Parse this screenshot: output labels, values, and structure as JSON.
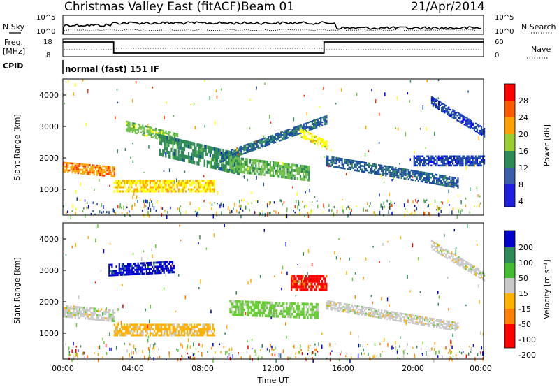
{
  "header": {
    "title": "Christmas Valley East (fitACF)",
    "beam": "Beam 01",
    "date": "21/Apr/2014"
  },
  "noise_panel": {
    "left_label": "N.Sky",
    "left_ticks": [
      "10^5",
      "10^0"
    ],
    "right_label": "N.Search",
    "right_ticks": [
      "10^5",
      "10^0"
    ]
  },
  "freq_panel": {
    "left_label_line1": "Freq.",
    "left_label_line2": "[MHz]",
    "left_ticks": [
      "18",
      "8"
    ],
    "right_label": "Nave",
    "right_ticks": [
      "60",
      "0"
    ]
  },
  "cpid": {
    "label": "CPID",
    "value": "normal (fast) 151 IF"
  },
  "power_panel": {
    "ylabel": "Slant Range [km]",
    "yticks": [
      "4000",
      "3000",
      "2000",
      "1000"
    ],
    "colorbar_label": "Power [dB]",
    "colorbar_ticks": [
      "28",
      "24",
      "20",
      "16",
      "12",
      "8",
      "4"
    ]
  },
  "velocity_panel": {
    "ylabel": "Slant Range [km]",
    "yticks": [
      "4000",
      "3000",
      "2000",
      "1000"
    ],
    "colorbar_label": "Velocity [m s⁻¹]",
    "colorbar_ticks": [
      "200",
      "100",
      "50",
      "15",
      "-15",
      "-50",
      "-100",
      "-200"
    ]
  },
  "xaxis": {
    "ticks": [
      "00:00",
      "04:00",
      "08:00",
      "12:00",
      "16:00",
      "20:00",
      "00:00"
    ],
    "label": "Time UT"
  },
  "chart_data": {
    "type": "heatmap",
    "panels": [
      {
        "name": "Power",
        "x_range_hours": [
          0,
          24
        ],
        "y_range_km": [
          180,
          4500
        ],
        "colorscale": [
          "#0000ff",
          "#1a4ba0",
          "#2e8b57",
          "#6cc04a",
          "#ffff00",
          "#ffa500",
          "#ff3300"
        ],
        "color_range": [
          0,
          30
        ],
        "features": [
          {
            "t": [
              0.0,
              2.9
            ],
            "r_center": [
              1700,
              1550
            ],
            "width": 350,
            "value": 26
          },
          {
            "t": [
              2.9,
              8.6
            ],
            "r_center": [
              1100,
              1100
            ],
            "width": 400,
            "value": 22
          },
          {
            "t": [
              3.6,
              6.5
            ],
            "r_center": [
              3000,
              2600
            ],
            "width": 350,
            "value": 15
          },
          {
            "t": [
              5.5,
              10.0
            ],
            "r_center": [
              2400,
              1800
            ],
            "width": 700,
            "value": 10
          },
          {
            "t": [
              9.0,
              15.0
            ],
            "r_center": [
              2000,
              3200
            ],
            "width": 300,
            "value": 7
          },
          {
            "t": [
              9.5,
              14.0
            ],
            "r_center": [
              1800,
              1500
            ],
            "width": 500,
            "value": 14
          },
          {
            "t": [
              13.5,
              15.0
            ],
            "r_center": [
              2800,
              2400
            ],
            "width": 300,
            "value": 20
          },
          {
            "t": [
              15.0,
              22.5
            ],
            "r_center": [
              1900,
              1200
            ],
            "width": 350,
            "value": 6
          },
          {
            "t": [
              21.0,
              24.0
            ],
            "r_center": [
              3800,
              2800
            ],
            "width": 300,
            "value": 4
          },
          {
            "t": [
              20.0,
              24.0
            ],
            "r_center": [
              1900,
              1900
            ],
            "width": 350,
            "value": 4
          }
        ]
      },
      {
        "name": "Velocity",
        "x_range_hours": [
          0,
          24
        ],
        "y_range_km": [
          180,
          4500
        ],
        "colorscale": [
          "#ff0000",
          "#ff7f00",
          "#ffb000",
          "#c8c8c8",
          "#66cc33",
          "#2e8b57",
          "#0000cc"
        ],
        "color_range": [
          -200,
          200
        ],
        "features": [
          {
            "t": [
              0.0,
              2.9
            ],
            "r_center": [
              1700,
              1550
            ],
            "width": 400,
            "value": 0
          },
          {
            "t": [
              2.9,
              8.6
            ],
            "r_center": [
              1100,
              1100
            ],
            "width": 400,
            "value": -60
          },
          {
            "t": [
              2.6,
              6.3
            ],
            "r_center": [
              3000,
              3100
            ],
            "width": 400,
            "value": 200
          },
          {
            "t": [
              9.5,
              14.5
            ],
            "r_center": [
              1800,
              1700
            ],
            "width": 500,
            "value": 60
          },
          {
            "t": [
              13.0,
              15.0
            ],
            "r_center": [
              2600,
              2600
            ],
            "width": 500,
            "value": -200
          },
          {
            "t": [
              15.0,
              22.5
            ],
            "r_center": [
              1900,
              1200
            ],
            "width": 300,
            "value": 0
          },
          {
            "t": [
              21.0,
              24.0
            ],
            "r_center": [
              3800,
              2800
            ],
            "width": 300,
            "value": 0
          }
        ]
      }
    ],
    "frequency_MHz": {
      "x": [
        0,
        0.02,
        2.9,
        2.9,
        14.9,
        14.9,
        24
      ],
      "y": [
        17,
        17,
        17,
        10,
        10,
        17,
        17
      ]
    }
  }
}
